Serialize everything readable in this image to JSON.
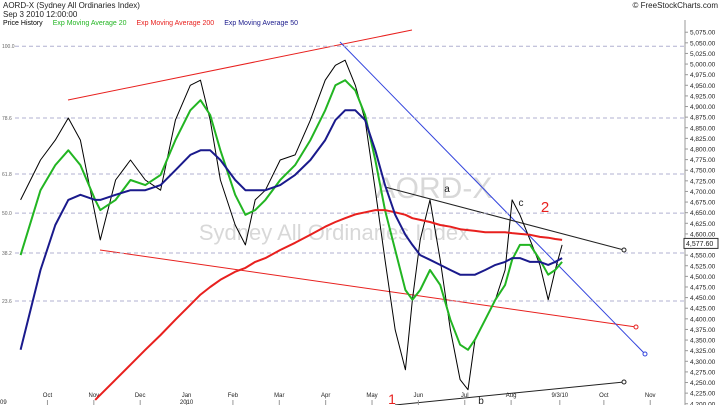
{
  "chart_data": {
    "type": "line",
    "title": "AORD-X (Sydney All Ordinaries Index)",
    "subtitle": "Sep 3 2010 12:00:00",
    "credit": "© FreeStockCharts.com",
    "watermark": [
      "AORD-X",
      "Sydney All Ordinaries Index"
    ],
    "last_price": {
      "value": 4577.6,
      "label": "4,577.60"
    },
    "annotations": [
      "a",
      "b",
      "c",
      "1",
      "2"
    ],
    "year_labels": [
      "09",
      "2010"
    ],
    "x": [
      0.42,
      0.85,
      1.17,
      1.45,
      1.71,
      2.03,
      2.14,
      2.47,
      2.79,
      3.11,
      3.44,
      3.76,
      4.08,
      4.3,
      4.51,
      4.73,
      5.05,
      5.27,
      5.48,
      5.7,
      6.02,
      6.34,
      6.67,
      6.99,
      7.21,
      7.42,
      7.64,
      7.85,
      8.07,
      8.28,
      8.5,
      8.72,
      8.87,
      9.04,
      9.25,
      9.47,
      9.69,
      9.9,
      10.07,
      10.22,
      10.44,
      10.66,
      10.87,
      11.02,
      11.19,
      11.41,
      11.62,
      11.8,
      11.95,
      12.1
    ],
    "series": [
      {
        "name": "Price History",
        "color": "#000000",
        "values": [
          4680,
          4774,
          4821,
          4873,
          4821,
          4645,
          4586,
          4727,
          4774,
          4727,
          4703,
          4868,
          4950,
          4962,
          4868,
          4727,
          4621,
          4574,
          4680,
          4703,
          4774,
          4786,
          4868,
          4962,
          4997,
          5009,
          4950,
          4868,
          4703,
          4539,
          4374,
          4280,
          4445,
          4586,
          4680,
          4539,
          4374,
          4257,
          4233,
          4351,
          4398,
          4445,
          4515,
          4680,
          4645,
          4586,
          4527,
          4445,
          4515,
          4574
        ]
      },
      {
        "name": "Exp Moving Average 20",
        "color": "#22b522",
        "values": [
          4550,
          4703,
          4762,
          4797,
          4762,
          4680,
          4656,
          4680,
          4727,
          4715,
          4739,
          4821,
          4891,
          4915,
          4880,
          4797,
          4692,
          4645,
          4656,
          4680,
          4727,
          4762,
          4821,
          4891,
          4950,
          4962,
          4938,
          4880,
          4774,
          4656,
          4562,
          4468,
          4445,
          4468,
          4515,
          4480,
          4398,
          4339,
          4327,
          4351,
          4398,
          4445,
          4480,
          4539,
          4574,
          4574,
          4539,
          4504,
          4515,
          4534
        ]
      },
      {
        "name": "Exp Moving Average 200",
        "color": "#e8201e",
        "values": [
          null,
          null,
          null,
          null,
          null,
          4209,
          4221,
          4257,
          4292,
          4327,
          4362,
          4398,
          4433,
          4457,
          4475,
          4492,
          4511,
          4520,
          4534,
          4543,
          4562,
          4579,
          4598,
          4617,
          4628,
          4637,
          4646,
          4651,
          4656,
          4656,
          4651,
          4645,
          4637,
          4633,
          4628,
          4621,
          4617,
          4611,
          4609,
          4607,
          4604,
          4604,
          4604,
          4602,
          4600,
          4598,
          4593,
          4591,
          4588,
          4586
        ]
      },
      {
        "name": "Exp Moving Average 50",
        "color": "#1a1a8c",
        "values": [
          4327,
          4515,
          4621,
          4680,
          4692,
          4680,
          4680,
          4692,
          4703,
          4703,
          4715,
          4750,
          4786,
          4797,
          4797,
          4774,
          4727,
          4703,
          4703,
          4703,
          4715,
          4739,
          4774,
          4821,
          4868,
          4891,
          4891,
          4868,
          4797,
          4715,
          4645,
          4598,
          4574,
          4550,
          4539,
          4527,
          4515,
          4504,
          4504,
          4504,
          4515,
          4527,
          4534,
          4543,
          4543,
          4534,
          4534,
          4527,
          4534,
          4543
        ]
      }
    ],
    "xlim": [
      0.3,
      14.75
    ],
    "xticks": [
      {
        "value": 1,
        "label": "Oct"
      },
      {
        "value": 2,
        "label": "Nov"
      },
      {
        "value": 3,
        "label": "Dec"
      },
      {
        "value": 4,
        "label": "Jan"
      },
      {
        "value": 5,
        "label": "Feb"
      },
      {
        "value": 6,
        "label": "Mar"
      },
      {
        "value": 7,
        "label": "Apr"
      },
      {
        "value": 8,
        "label": "May"
      },
      {
        "value": 9,
        "label": "Jun"
      },
      {
        "value": 10,
        "label": "Jul"
      },
      {
        "value": 11,
        "label": "Aug"
      },
      {
        "value": 12.05,
        "label": "9/3/10"
      },
      {
        "value": 13,
        "label": "Oct"
      },
      {
        "value": 14,
        "label": "Nov"
      }
    ],
    "ylim": [
      4190,
      5092
    ],
    "yticks": [
      {
        "value": 4200,
        "label": "4,200.00"
      },
      {
        "value": 4225,
        "label": "4,225.00"
      },
      {
        "value": 4250,
        "label": "4,250.00"
      },
      {
        "value": 4275,
        "label": "4,275.00"
      },
      {
        "value": 4300,
        "label": "4,300.00"
      },
      {
        "value": 4325,
        "label": "4,325.00"
      },
      {
        "value": 4350,
        "label": "4,350.00"
      },
      {
        "value": 4375,
        "label": "4,375.00"
      },
      {
        "value": 4400,
        "label": "4,400.00"
      },
      {
        "value": 4425,
        "label": "4,425.00"
      },
      {
        "value": 4450,
        "label": "4,450.00"
      },
      {
        "value": 4475,
        "label": "4,475.00"
      },
      {
        "value": 4500,
        "label": "4,500.00"
      },
      {
        "value": 4525,
        "label": "4,525.00"
      },
      {
        "value": 4550,
        "label": "4,550.00"
      },
      {
        "value": 4575,
        "label": "4,575.00"
      },
      {
        "value": 4600,
        "label": "4,600.00"
      },
      {
        "value": 4625,
        "label": "4,625.00"
      },
      {
        "value": 4650,
        "label": "4,650.00"
      },
      {
        "value": 4675,
        "label": "4,675.00"
      },
      {
        "value": 4700,
        "label": "4,700.00"
      },
      {
        "value": 4725,
        "label": "4,725.00"
      },
      {
        "value": 4750,
        "label": "4,750.00"
      },
      {
        "value": 4775,
        "label": "4,775.00"
      },
      {
        "value": 4800,
        "label": "4,800.00"
      },
      {
        "value": 4825,
        "label": "4,825.00"
      },
      {
        "value": 4850,
        "label": "4,850.00"
      },
      {
        "value": 4875,
        "label": "4,875.00"
      },
      {
        "value": 4900,
        "label": "4,900.00"
      },
      {
        "value": 4925,
        "label": "4,925.00"
      },
      {
        "value": 4950,
        "label": "4,950.00"
      },
      {
        "value": 4975,
        "label": "4,975.00"
      },
      {
        "value": 5000,
        "label": "5,000.00"
      },
      {
        "value": 5025,
        "label": "5,025.00"
      },
      {
        "value": 5050,
        "label": "5,050.00"
      },
      {
        "value": 5075,
        "label": "5,075.00"
      }
    ],
    "fib_levels": [
      {
        "value": 5042,
        "label": "100.0"
      },
      {
        "value": 4873,
        "label": "78.6"
      },
      {
        "value": 4741,
        "label": "61.8"
      },
      {
        "value": 4649,
        "label": "50.0"
      },
      {
        "value": 4555,
        "label": "38.2"
      },
      {
        "value": 4442,
        "label": "23.6"
      }
    ]
  }
}
